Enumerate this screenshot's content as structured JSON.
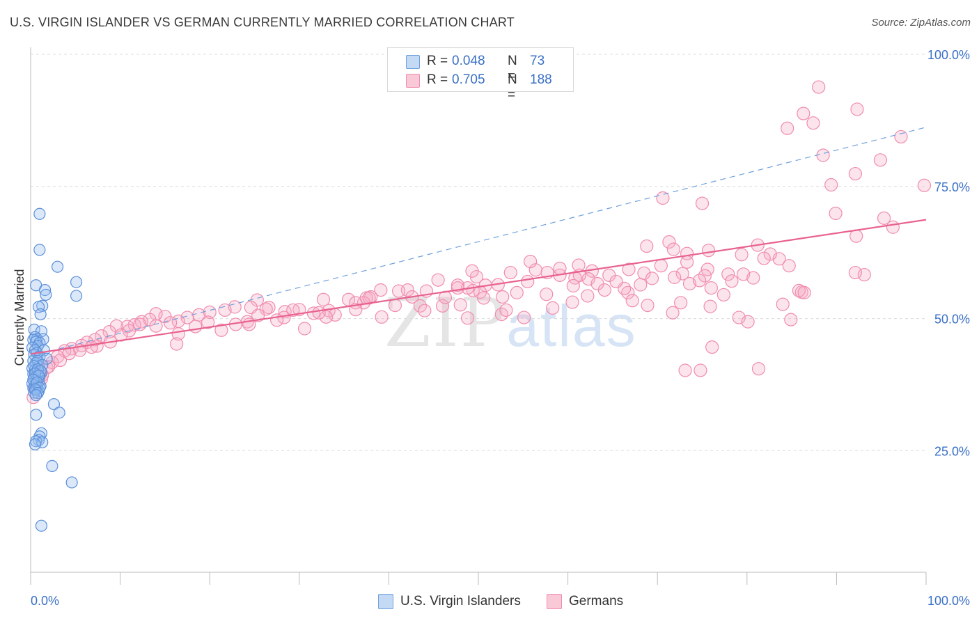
{
  "header": {
    "title": "U.S. VIRGIN ISLANDER VS GERMAN CURRENTLY MARRIED CORRELATION CHART",
    "source": "Source: ZipAtlas.com"
  },
  "legend": {
    "rows": [
      {
        "r_label": "R =",
        "r_value": "0.048",
        "n_label": "N =",
        "n_value": "73",
        "color": "#a9c7ee"
      },
      {
        "r_label": "R =",
        "r_value": "0.705",
        "n_label": "N =",
        "n_value": "188",
        "color": "#f5b8cb"
      }
    ]
  },
  "bottom_legend": {
    "items": [
      {
        "label": "U.S. Virgin Islanders",
        "color": "#a9c7ee"
      },
      {
        "label": "Germans",
        "color": "#f5b8cb"
      }
    ]
  },
  "watermark": {
    "zip": "ZIP",
    "atlas": "atlas"
  },
  "chart_data": {
    "type": "scatter",
    "title": "U.S. VIRGIN ISLANDER VS GERMAN CURRENTLY MARRIED CORRELATION CHART",
    "ylabel": "Currently Married",
    "xlabel": "",
    "xlim": [
      0,
      100
    ],
    "ylim": [
      2,
      100
    ],
    "x_tick_labels": [
      "0.0%",
      "100.0%"
    ],
    "y_ticks": [
      25,
      50,
      75,
      100
    ],
    "y_tick_labels": [
      "25.0%",
      "50.0%",
      "75.0%",
      "100.0%"
    ],
    "grid": true,
    "colors": {
      "blue": "#5b8fd9",
      "pink": "#f08caf",
      "blue_line": "#6fa0dd",
      "pink_line": "#e8628e",
      "tick_label": "#3a70c6"
    },
    "series": [
      {
        "name": "U.S. Virgin Islanders",
        "color": "#5b8fd9",
        "points": [
          [
            1.0,
            69.8
          ],
          [
            1.0,
            63.0
          ],
          [
            3.0,
            59.8
          ],
          [
            5.1,
            56.9
          ],
          [
            0.6,
            56.3
          ],
          [
            1.6,
            55.4
          ],
          [
            1.7,
            54.5
          ],
          [
            5.1,
            54.3
          ],
          [
            1.3,
            52.4
          ],
          [
            0.9,
            52.2
          ],
          [
            1.1,
            50.8
          ],
          [
            0.4,
            47.9
          ],
          [
            1.2,
            47.6
          ],
          [
            0.5,
            46.5
          ],
          [
            0.7,
            46.1
          ],
          [
            1.4,
            46.1
          ],
          [
            0.3,
            46.0
          ],
          [
            0.6,
            45.6
          ],
          [
            1.0,
            45.4
          ],
          [
            0.8,
            44.8
          ],
          [
            0.2,
            44.5
          ],
          [
            0.5,
            44.0
          ],
          [
            1.5,
            44.0
          ],
          [
            0.7,
            43.5
          ],
          [
            0.4,
            43.2
          ],
          [
            1.0,
            42.8
          ],
          [
            1.8,
            42.4
          ],
          [
            0.3,
            42.0
          ],
          [
            0.6,
            41.6
          ],
          [
            0.9,
            41.0
          ],
          [
            0.2,
            40.6
          ],
          [
            0.5,
            40.3
          ],
          [
            0.8,
            40.0
          ],
          [
            1.2,
            39.8
          ],
          [
            0.3,
            39.5
          ],
          [
            0.7,
            39.3
          ],
          [
            1.0,
            39.0
          ],
          [
            0.4,
            38.7
          ],
          [
            0.6,
            38.3
          ],
          [
            0.9,
            38.0
          ],
          [
            0.2,
            37.7
          ],
          [
            0.5,
            37.4
          ],
          [
            1.1,
            37.2
          ],
          [
            0.7,
            37.0
          ],
          [
            0.3,
            36.8
          ],
          [
            0.6,
            36.5
          ],
          [
            0.9,
            36.3
          ],
          [
            0.4,
            36.0
          ],
          [
            2.6,
            33.8
          ],
          [
            3.2,
            32.2
          ],
          [
            0.6,
            31.8
          ],
          [
            1.2,
            28.3
          ],
          [
            1.0,
            27.7
          ],
          [
            0.9,
            27.0
          ],
          [
            0.6,
            26.8
          ],
          [
            1.3,
            26.6
          ],
          [
            0.5,
            26.2
          ],
          [
            2.4,
            22.1
          ],
          [
            4.6,
            19.0
          ],
          [
            1.2,
            10.8
          ],
          [
            0.8,
            42.0
          ],
          [
            1.3,
            41.2
          ],
          [
            0.4,
            41.0
          ],
          [
            0.8,
            40.4
          ],
          [
            1.1,
            40.1
          ],
          [
            0.5,
            39.6
          ],
          [
            0.9,
            39.2
          ],
          [
            0.3,
            38.4
          ],
          [
            0.7,
            37.9
          ],
          [
            1.0,
            36.9
          ],
          [
            0.5,
            36.6
          ],
          [
            0.8,
            35.9
          ],
          [
            0.6,
            35.5
          ]
        ],
        "trend": {
          "x": [
            0,
            100
          ],
          "y": [
            42.9,
            86.2
          ],
          "style": "dashed"
        }
      },
      {
        "name": "Germans",
        "color": "#f08caf",
        "points": [
          [
            88.0,
            93.8
          ],
          [
            92.3,
            89.6
          ],
          [
            86.3,
            88.8
          ],
          [
            84.5,
            86.0
          ],
          [
            87.4,
            87.0
          ],
          [
            97.2,
            84.4
          ],
          [
            88.5,
            80.9
          ],
          [
            94.9,
            80.0
          ],
          [
            92.1,
            77.4
          ],
          [
            99.8,
            75.2
          ],
          [
            89.4,
            75.3
          ],
          [
            70.6,
            72.8
          ],
          [
            75.0,
            71.8
          ],
          [
            71.3,
            64.5
          ],
          [
            89.9,
            69.9
          ],
          [
            95.3,
            69.0
          ],
          [
            96.3,
            67.3
          ],
          [
            92.2,
            65.6
          ],
          [
            81.2,
            63.9
          ],
          [
            83.6,
            61.3
          ],
          [
            93.1,
            58.3
          ],
          [
            75.7,
            62.9
          ],
          [
            79.4,
            62.1
          ],
          [
            82.6,
            62.2
          ],
          [
            81.9,
            61.4
          ],
          [
            84.7,
            60.0
          ],
          [
            92.1,
            58.7
          ],
          [
            68.8,
            63.7
          ],
          [
            71.8,
            63.1
          ],
          [
            73.3,
            62.3
          ],
          [
            73.3,
            60.7
          ],
          [
            70.4,
            60.0
          ],
          [
            72.8,
            58.5
          ],
          [
            75.6,
            59.3
          ],
          [
            75.3,
            58.1
          ],
          [
            73.6,
            56.6
          ],
          [
            76.0,
            55.8
          ],
          [
            74.7,
            57.2
          ],
          [
            79.6,
            58.4
          ],
          [
            77.9,
            58.4
          ],
          [
            80.7,
            57.7
          ],
          [
            86.1,
            55.0
          ],
          [
            84.9,
            49.8
          ],
          [
            75.9,
            52.3
          ],
          [
            79.1,
            50.2
          ],
          [
            80.1,
            49.4
          ],
          [
            84.0,
            52.7
          ],
          [
            71.7,
            51.1
          ],
          [
            68.9,
            52.5
          ],
          [
            76.1,
            44.6
          ],
          [
            74.8,
            40.2
          ],
          [
            81.3,
            40.5
          ],
          [
            73.1,
            40.2
          ],
          [
            77.4,
            54.5
          ],
          [
            72.6,
            53.0
          ],
          [
            66.7,
            54.9
          ],
          [
            68.1,
            56.4
          ],
          [
            68.5,
            58.6
          ],
          [
            64.6,
            58.2
          ],
          [
            62.7,
            59.0
          ],
          [
            62.3,
            57.5
          ],
          [
            61.3,
            58.2
          ],
          [
            61.2,
            60.1
          ],
          [
            63.3,
            56.6
          ],
          [
            66.3,
            55.7
          ],
          [
            65.4,
            57.0
          ],
          [
            60.8,
            57.7
          ],
          [
            59.1,
            58.2
          ],
          [
            57.7,
            58.7
          ],
          [
            56.4,
            59.2
          ],
          [
            55.5,
            57.0
          ],
          [
            53.6,
            58.7
          ],
          [
            52.2,
            56.4
          ],
          [
            50.8,
            56.3
          ],
          [
            49.4,
            55.3
          ],
          [
            50.2,
            55.0
          ],
          [
            48.8,
            55.8
          ],
          [
            49.8,
            57.9
          ],
          [
            49.3,
            59.0
          ],
          [
            55.8,
            60.8
          ],
          [
            59.1,
            59.5
          ],
          [
            60.6,
            56.2
          ],
          [
            62.2,
            54.3
          ],
          [
            64.1,
            55.4
          ],
          [
            66.8,
            59.3
          ],
          [
            69.4,
            57.6
          ],
          [
            67.2,
            53.4
          ],
          [
            71.9,
            57.8
          ],
          [
            78.3,
            57.1
          ],
          [
            85.8,
            55.3
          ],
          [
            86.4,
            54.9
          ],
          [
            60.5,
            53.1
          ],
          [
            57.6,
            54.6
          ],
          [
            54.3,
            54.9
          ],
          [
            52.7,
            54.1
          ],
          [
            50.6,
            53.9
          ],
          [
            47.7,
            56.3
          ],
          [
            47.7,
            55.8
          ],
          [
            45.5,
            57.3
          ],
          [
            44.2,
            55.2
          ],
          [
            42.1,
            55.4
          ],
          [
            41.1,
            55.2
          ],
          [
            39.1,
            55.4
          ],
          [
            38.0,
            54.1
          ],
          [
            37.5,
            53.9
          ],
          [
            37.2,
            53.0
          ],
          [
            35.5,
            53.6
          ],
          [
            33.3,
            51.5
          ],
          [
            31.6,
            51.0
          ],
          [
            30.0,
            51.7
          ],
          [
            28.4,
            51.3
          ],
          [
            26.6,
            52.1
          ],
          [
            26.3,
            51.8
          ],
          [
            25.3,
            53.5
          ],
          [
            24.6,
            52.1
          ],
          [
            22.8,
            52.2
          ],
          [
            21.7,
            51.6
          ],
          [
            20.0,
            51.2
          ],
          [
            18.8,
            50.7
          ],
          [
            17.5,
            50.2
          ],
          [
            16.5,
            49.5
          ],
          [
            15.0,
            50.4
          ],
          [
            14.0,
            50.9
          ],
          [
            13.3,
            49.8
          ],
          [
            12.4,
            49.4
          ],
          [
            11.6,
            48.8
          ],
          [
            10.8,
            48.5
          ],
          [
            9.6,
            48.6
          ],
          [
            8.8,
            47.5
          ],
          [
            7.9,
            46.7
          ],
          [
            7.2,
            46.0
          ],
          [
            6.3,
            45.5
          ],
          [
            5.7,
            44.9
          ],
          [
            4.6,
            44.3
          ],
          [
            3.8,
            43.9
          ],
          [
            3.0,
            42.8
          ],
          [
            2.4,
            41.7
          ],
          [
            1.8,
            40.7
          ],
          [
            1.3,
            39.3
          ],
          [
            0.8,
            38.6
          ],
          [
            0.5,
            36.8
          ],
          [
            0.3,
            35.1
          ],
          [
            30.6,
            48.1
          ],
          [
            39.2,
            50.3
          ],
          [
            43.5,
            52.4
          ],
          [
            46.0,
            52.4
          ],
          [
            48.8,
            50.1
          ],
          [
            52.6,
            50.8
          ],
          [
            55.1,
            50.2
          ],
          [
            53.1,
            51.6
          ],
          [
            58.3,
            52.0
          ],
          [
            36.3,
            53.0
          ],
          [
            34.0,
            50.7
          ],
          [
            33.0,
            50.3
          ],
          [
            28.3,
            50.2
          ],
          [
            25.4,
            50.6
          ],
          [
            24.2,
            49.4
          ],
          [
            22.9,
            48.9
          ],
          [
            21.3,
            47.8
          ],
          [
            19.8,
            49.3
          ],
          [
            18.4,
            48.5
          ],
          [
            16.5,
            47.1
          ],
          [
            15.6,
            49.2
          ],
          [
            14.0,
            48.6
          ],
          [
            12.2,
            48.9
          ],
          [
            11.0,
            47.7
          ],
          [
            10.1,
            46.9
          ],
          [
            8.9,
            45.6
          ],
          [
            7.4,
            44.8
          ],
          [
            6.8,
            44.6
          ],
          [
            5.5,
            44.0
          ],
          [
            4.3,
            43.4
          ],
          [
            3.3,
            42.1
          ],
          [
            2.0,
            40.9
          ],
          [
            1.2,
            38.6
          ],
          [
            24.4,
            48.9
          ],
          [
            27.5,
            49.7
          ],
          [
            32.2,
            51.1
          ],
          [
            36.3,
            51.7
          ],
          [
            40.7,
            52.5
          ],
          [
            44.0,
            51.5
          ],
          [
            48.0,
            52.6
          ],
          [
            16.3,
            45.2
          ],
          [
            29.3,
            51.6
          ],
          [
            32.7,
            53.6
          ],
          [
            37.8,
            53.9
          ],
          [
            42.6,
            54.1
          ],
          [
            46.3,
            54.0
          ]
        ],
        "trend": {
          "x": [
            0,
            100
          ],
          "y": [
            43.3,
            68.7
          ],
          "style": "solid"
        }
      }
    ]
  }
}
